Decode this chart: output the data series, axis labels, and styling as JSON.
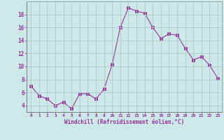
{
  "x": [
    0,
    1,
    2,
    3,
    4,
    5,
    6,
    7,
    8,
    9,
    10,
    11,
    12,
    13,
    14,
    15,
    16,
    17,
    18,
    19,
    20,
    21,
    22,
    23
  ],
  "y": [
    7.0,
    5.5,
    5.0,
    4.0,
    4.5,
    3.5,
    5.8,
    5.8,
    5.0,
    6.5,
    10.3,
    16.0,
    19.0,
    18.5,
    18.2,
    16.0,
    14.3,
    15.0,
    14.8,
    12.8,
    11.0,
    11.5,
    10.2,
    8.2
  ],
  "line_color": "#993399",
  "marker_color": "#993399",
  "bg_color": "#cce8e8",
  "grid_color": "#b0c8c8",
  "xlabel": "Windchill (Refroidissement éolien,°C)",
  "xlabel_color": "#993399",
  "xtick_color": "#993399",
  "ytick_color": "#993399",
  "ylim": [
    3,
    20
  ],
  "xlim": [
    -0.5,
    23.5
  ],
  "yticks": [
    4,
    6,
    8,
    10,
    12,
    14,
    16,
    18
  ],
  "xticks": [
    0,
    1,
    2,
    3,
    4,
    5,
    6,
    7,
    8,
    9,
    10,
    11,
    12,
    13,
    14,
    15,
    16,
    17,
    18,
    19,
    20,
    21,
    22,
    23
  ]
}
